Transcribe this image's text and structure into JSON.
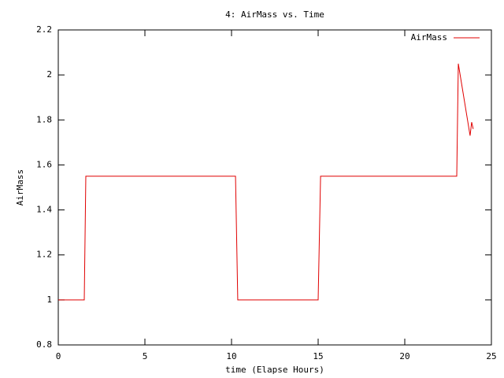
{
  "chart_data": {
    "type": "line",
    "title": "4: AirMass vs. Time",
    "x_label": "time (Elapse Hours)",
    "y_label": "AirMass",
    "series": [
      {
        "name": "AirMass",
        "color": "#e00000",
        "x": [
          0,
          1.5,
          1.59,
          10.23,
          10.36,
          15.0,
          15.14,
          23.0,
          23.09,
          23.77,
          23.86,
          23.95
        ],
        "values": [
          1.0,
          1.0,
          1.55,
          1.55,
          1.0,
          1.0,
          1.55,
          1.55,
          2.05,
          1.73,
          1.79,
          1.76
        ]
      }
    ],
    "xlim": [
      0,
      25
    ],
    "xticks": [
      0,
      5,
      10,
      15,
      20,
      25
    ],
    "ylim": [
      0.8,
      2.2
    ],
    "yticks": [
      0.8,
      1,
      1.2,
      1.4,
      1.6,
      1.8,
      2,
      2.2
    ],
    "legend": "top-right"
  }
}
